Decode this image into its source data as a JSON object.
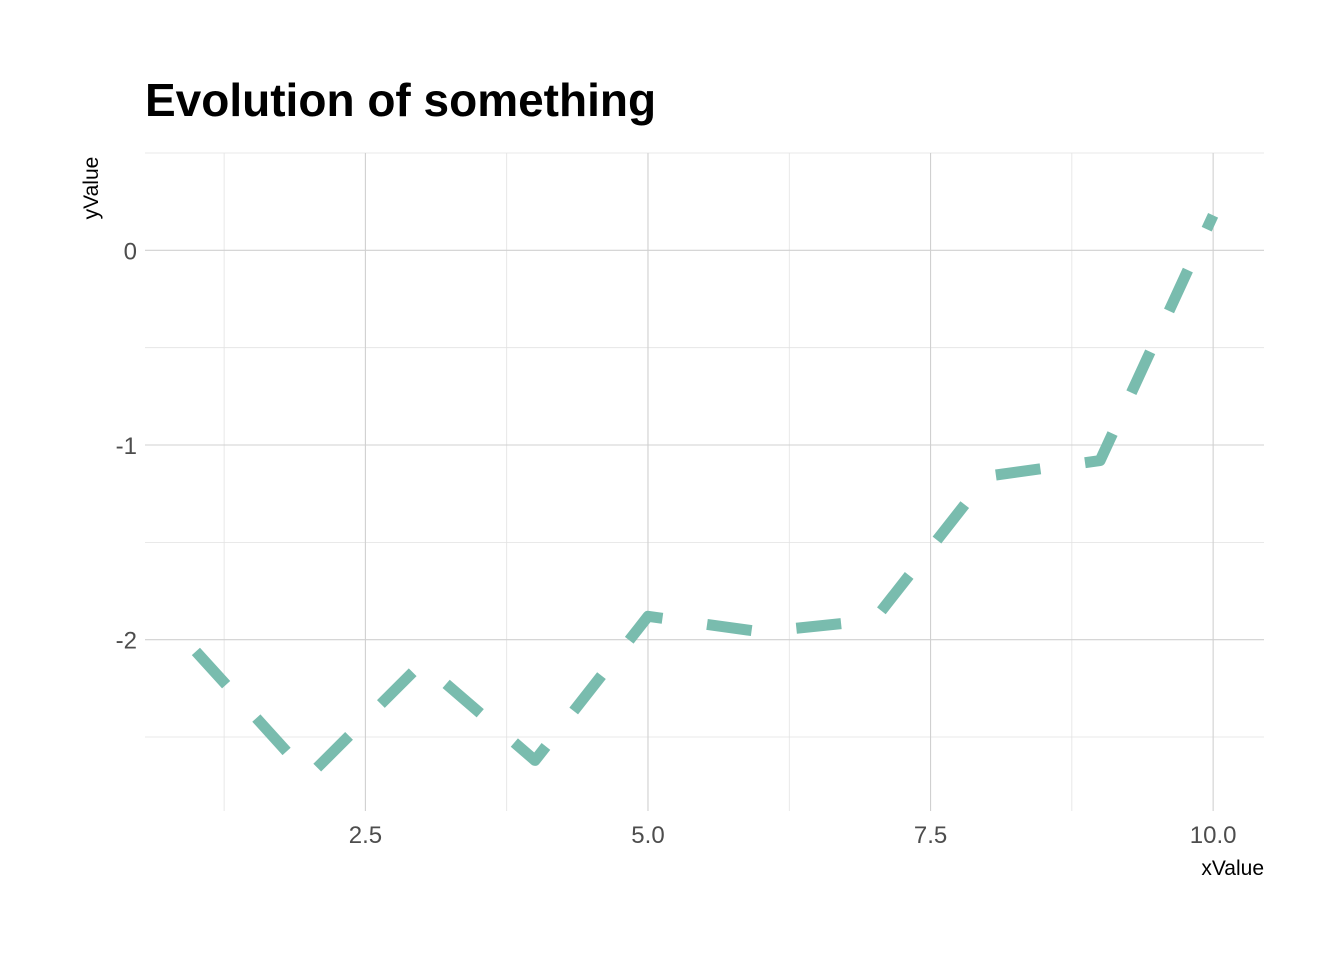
{
  "chart_data": {
    "type": "line",
    "title": "Evolution of something",
    "xlabel": "xValue",
    "ylabel": "yValue",
    "x": [
      1,
      2,
      3,
      4,
      5,
      6,
      7,
      8,
      9,
      10
    ],
    "series": [
      {
        "values": [
          -2.06,
          -2.7,
          -2.12,
          -2.62,
          -1.88,
          -1.96,
          -1.9,
          -1.16,
          -1.08,
          0.18
        ]
      }
    ],
    "xlim": [
      0.55,
      10.45
    ],
    "ylim": [
      -2.88,
      0.5
    ],
    "x_ticks": [
      2.5,
      5.0,
      7.5,
      10.0
    ],
    "x_tick_labels": [
      "2.5",
      "5.0",
      "7.5",
      "10.0"
    ],
    "y_ticks": [
      0,
      -1,
      -2
    ],
    "y_tick_labels": [
      "0",
      "-1",
      "-2"
    ],
    "line_color": "#79BCAE",
    "line_style": "dashed",
    "grid": true,
    "theme": "minimal"
  }
}
